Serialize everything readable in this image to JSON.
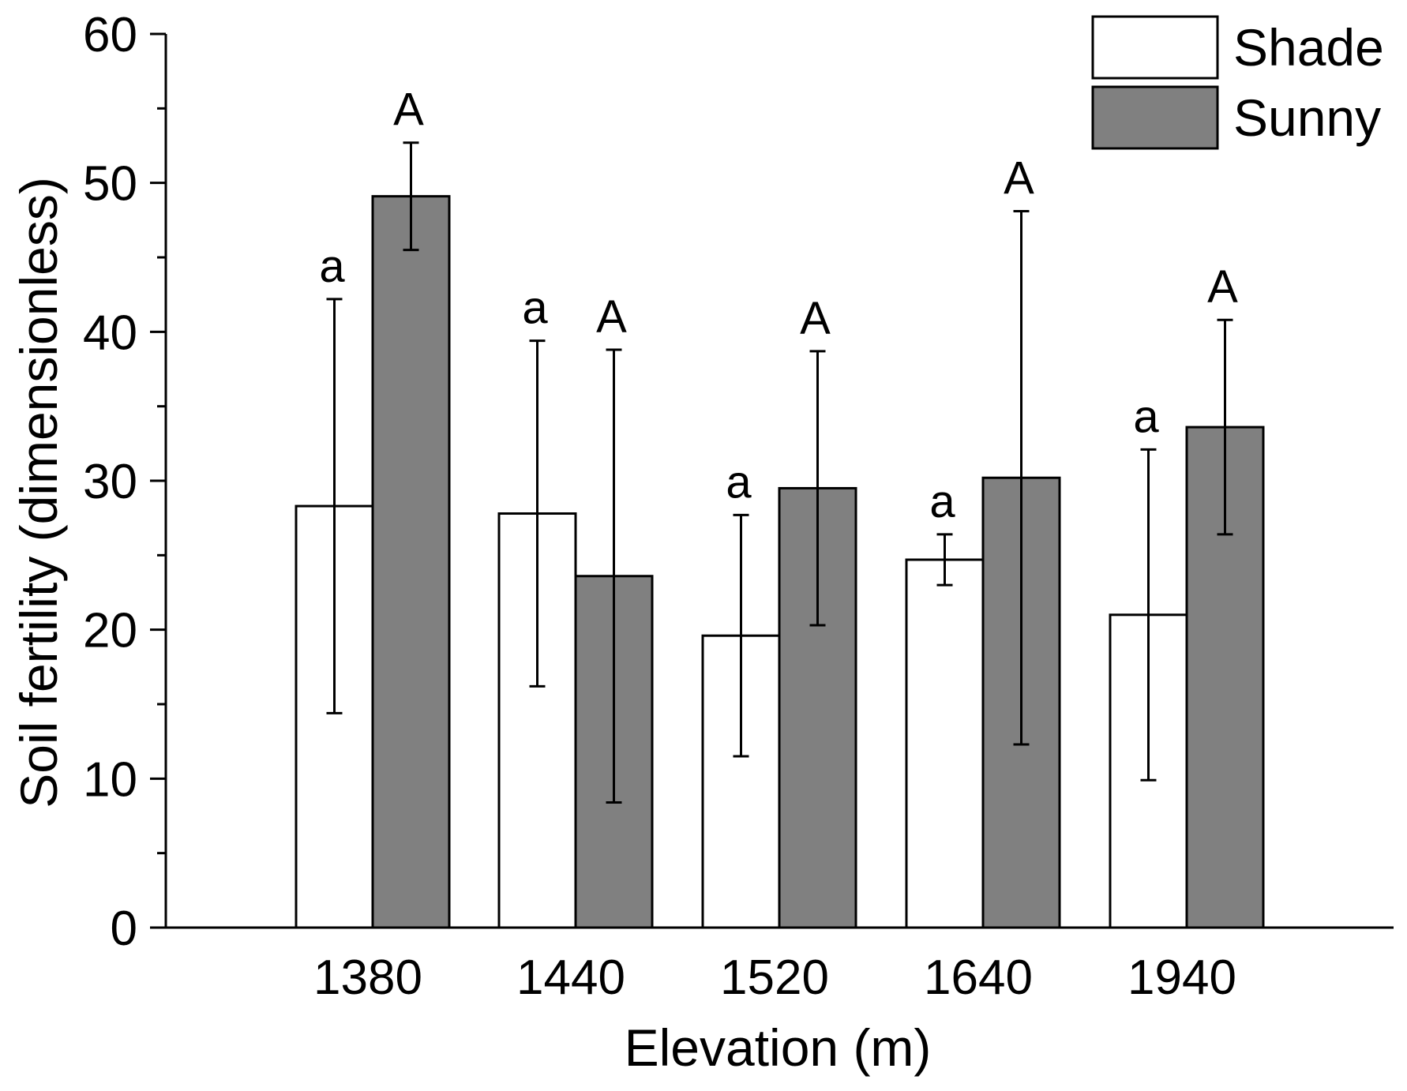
{
  "chart_data": {
    "type": "bar",
    "title": "",
    "xlabel": "Elevation (m)",
    "ylabel": "Soil fertility (dimensionless)",
    "ylim": [
      0,
      60
    ],
    "yticks": [
      0,
      10,
      20,
      30,
      40,
      50,
      60
    ],
    "categories": [
      "1380",
      "1440",
      "1520",
      "1640",
      "1940"
    ],
    "legend_position": "top-right",
    "series": [
      {
        "name": "Shade",
        "color": "#ffffff",
        "values": [
          28.3,
          27.8,
          19.6,
          24.7,
          21.0
        ],
        "errors": [
          13.9,
          11.6,
          8.1,
          1.7,
          11.1
        ],
        "letters": [
          "a",
          "a",
          "a",
          "a",
          "a"
        ]
      },
      {
        "name": "Sunny",
        "color": "#808080",
        "values": [
          49.1,
          23.6,
          29.5,
          30.2,
          33.6
        ],
        "errors": [
          3.6,
          15.2,
          9.2,
          17.9,
          7.2
        ],
        "letters": [
          "A",
          "A",
          "A",
          "A",
          "A"
        ]
      }
    ]
  }
}
